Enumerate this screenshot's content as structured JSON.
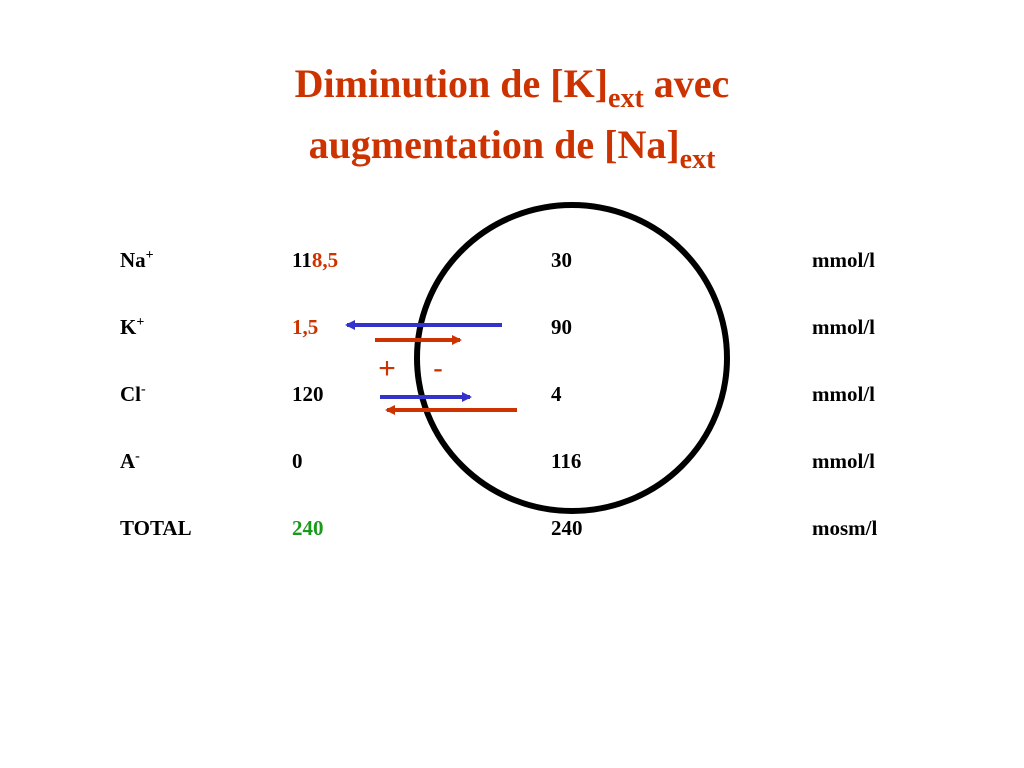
{
  "title": {
    "line1": "Diminution de [K]",
    "sub1": "ext",
    "line1_end": " avec",
    "line2": "augmentation de [Na]",
    "sub2": "ext"
  },
  "rows": [
    {
      "ion": "Na",
      "charge": "+",
      "ext": [
        {
          "text": "11",
          "color": "#000000"
        },
        {
          "text": "8,5",
          "color": "#cc3300"
        }
      ],
      "int": {
        "text": "30",
        "color": "#000000"
      },
      "unit": "mmol/l"
    },
    {
      "ion": "K",
      "charge": "+",
      "ext": [
        {
          "text": "1,5",
          "color": "#cc3300"
        }
      ],
      "int": {
        "text": "90",
        "color": "#000000"
      },
      "unit": "mmol/l"
    },
    {
      "ion": "Cl",
      "charge": "-",
      "ext": [
        {
          "text": "120",
          "color": "#000000"
        }
      ],
      "int": {
        "text": "4",
        "color": "#000000"
      },
      "unit": "mmol/l"
    },
    {
      "ion": "A",
      "charge": "-",
      "ext": [
        {
          "text": "0",
          "color": "#000000"
        }
      ],
      "int": {
        "text": "116",
        "color": "#000000"
      },
      "unit": "mmol/l"
    },
    {
      "ion": "TOTAL",
      "charge": null,
      "ext": [
        {
          "text": "240",
          "color": "#1a9a1a"
        }
      ],
      "int": {
        "text": "240",
        "color": "#1a9a1a"
      },
      "unit": "mosm/l"
    }
  ],
  "signs": [
    "+",
    "-"
  ]
}
